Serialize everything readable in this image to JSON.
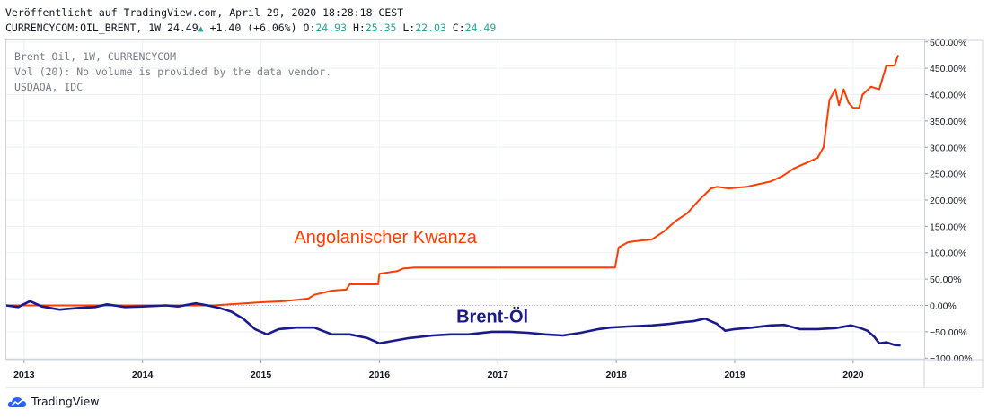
{
  "header": {
    "published": "Veröffentlicht auf TradingView.com, April 29, 2020 18:28:18 CEST",
    "symbol": "CURRENCYCOM:OIL_BRENT, 1W",
    "last": "24.49",
    "change": "+1.40",
    "change_pct": "(+6.06%)",
    "o_label": "O:",
    "o_value": "24.93",
    "h_label": "H:",
    "h_value": "25.35",
    "l_label": "L:",
    "l_value": "22.03",
    "c_label": "C:",
    "c_value": "24.49"
  },
  "legend": {
    "line1": "Brent Oil, 1W, CURRENCYCOM",
    "line2": "Vol (20): No volume is provided by the data vendor.",
    "line3": "USDAOA, IDC"
  },
  "brand": {
    "name": "TradingView"
  },
  "colors": {
    "kwanza": "#ff3d00",
    "brent": "#1a1a8c",
    "grid": "#eef0f3",
    "axis_text": "#131722"
  },
  "chart_data": {
    "type": "line",
    "x_unit": "year",
    "xlim": [
      2012.85,
      2020.6
    ],
    "ylim": [
      -103,
      503
    ],
    "y_ticks": [
      500,
      450,
      400,
      350,
      300,
      250,
      200,
      150,
      100,
      50,
      0,
      -50,
      -100
    ],
    "y_tick_labels": [
      "500.00%",
      "450.00%",
      "400.00%",
      "350.00%",
      "300.00%",
      "250.00%",
      "200.00%",
      "150.00%",
      "100.00%",
      "50.00%",
      "0.00%",
      "−50.00%",
      "−100.00%"
    ],
    "x_ticks": [
      2013,
      2014,
      2015,
      2016,
      2017,
      2018,
      2019,
      2020
    ],
    "x_tick_labels": [
      "2013",
      "2014",
      "2015",
      "2016",
      "2017",
      "2018",
      "2019",
      "2020"
    ],
    "grid": true,
    "series": [
      {
        "name": "Angolanischer Kwanza",
        "label_at": [
          2015.28,
          118
        ],
        "points": [
          [
            2012.85,
            0
          ],
          [
            2013.5,
            0
          ],
          [
            2014.0,
            0
          ],
          [
            2014.6,
            0
          ],
          [
            2014.8,
            3
          ],
          [
            2015.0,
            6
          ],
          [
            2015.2,
            8
          ],
          [
            2015.4,
            13
          ],
          [
            2015.45,
            20
          ],
          [
            2015.6,
            28
          ],
          [
            2015.72,
            30
          ],
          [
            2015.75,
            40
          ],
          [
            2015.85,
            40
          ],
          [
            2015.99,
            40
          ],
          [
            2016.0,
            60
          ],
          [
            2016.15,
            65
          ],
          [
            2016.2,
            70
          ],
          [
            2016.3,
            72
          ],
          [
            2016.5,
            72
          ],
          [
            2017.0,
            72
          ],
          [
            2017.5,
            72
          ],
          [
            2017.99,
            72
          ],
          [
            2018.02,
            110
          ],
          [
            2018.1,
            120
          ],
          [
            2018.2,
            123
          ],
          [
            2018.3,
            125
          ],
          [
            2018.4,
            140
          ],
          [
            2018.5,
            160
          ],
          [
            2018.6,
            175
          ],
          [
            2018.7,
            200
          ],
          [
            2018.8,
            222
          ],
          [
            2018.85,
            225
          ],
          [
            2018.95,
            222
          ],
          [
            2019.1,
            225
          ],
          [
            2019.2,
            230
          ],
          [
            2019.3,
            235
          ],
          [
            2019.4,
            245
          ],
          [
            2019.5,
            260
          ],
          [
            2019.6,
            270
          ],
          [
            2019.7,
            280
          ],
          [
            2019.75,
            300
          ],
          [
            2019.8,
            390
          ],
          [
            2019.85,
            410
          ],
          [
            2019.88,
            380
          ],
          [
            2019.92,
            410
          ],
          [
            2019.96,
            385
          ],
          [
            2020.0,
            375
          ],
          [
            2020.05,
            375
          ],
          [
            2020.08,
            400
          ],
          [
            2020.15,
            415
          ],
          [
            2020.22,
            410
          ],
          [
            2020.28,
            455
          ],
          [
            2020.35,
            455
          ],
          [
            2020.38,
            475
          ]
        ]
      },
      {
        "name": "Brent-Öl",
        "label_at": [
          2016.65,
          -32
        ],
        "points": [
          [
            2012.85,
            0
          ],
          [
            2012.95,
            -3
          ],
          [
            2013.05,
            8
          ],
          [
            2013.15,
            -2
          ],
          [
            2013.3,
            -8
          ],
          [
            2013.45,
            -5
          ],
          [
            2013.6,
            -3
          ],
          [
            2013.7,
            2
          ],
          [
            2013.85,
            -3
          ],
          [
            2014.0,
            -2
          ],
          [
            2014.2,
            0
          ],
          [
            2014.3,
            -2
          ],
          [
            2014.45,
            4
          ],
          [
            2014.55,
            0
          ],
          [
            2014.65,
            -5
          ],
          [
            2014.75,
            -12
          ],
          [
            2014.85,
            -25
          ],
          [
            2014.95,
            -45
          ],
          [
            2015.05,
            -55
          ],
          [
            2015.15,
            -45
          ],
          [
            2015.3,
            -42
          ],
          [
            2015.45,
            -42
          ],
          [
            2015.6,
            -55
          ],
          [
            2015.75,
            -55
          ],
          [
            2015.9,
            -62
          ],
          [
            2016.0,
            -72
          ],
          [
            2016.1,
            -68
          ],
          [
            2016.25,
            -62
          ],
          [
            2016.45,
            -57
          ],
          [
            2016.6,
            -55
          ],
          [
            2016.75,
            -55
          ],
          [
            2016.95,
            -50
          ],
          [
            2017.1,
            -50
          ],
          [
            2017.25,
            -52
          ],
          [
            2017.4,
            -55
          ],
          [
            2017.55,
            -57
          ],
          [
            2017.7,
            -52
          ],
          [
            2017.85,
            -45
          ],
          [
            2017.95,
            -42
          ],
          [
            2018.1,
            -40
          ],
          [
            2018.3,
            -38
          ],
          [
            2018.45,
            -35
          ],
          [
            2018.55,
            -32
          ],
          [
            2018.65,
            -30
          ],
          [
            2018.75,
            -25
          ],
          [
            2018.85,
            -35
          ],
          [
            2018.92,
            -48
          ],
          [
            2019.0,
            -45
          ],
          [
            2019.15,
            -42
          ],
          [
            2019.3,
            -38
          ],
          [
            2019.42,
            -37
          ],
          [
            2019.55,
            -45
          ],
          [
            2019.7,
            -45
          ],
          [
            2019.85,
            -43
          ],
          [
            2019.98,
            -38
          ],
          [
            2020.05,
            -42
          ],
          [
            2020.12,
            -48
          ],
          [
            2020.18,
            -60
          ],
          [
            2020.22,
            -72
          ],
          [
            2020.28,
            -70
          ],
          [
            2020.35,
            -75
          ],
          [
            2020.4,
            -76
          ]
        ]
      }
    ]
  }
}
